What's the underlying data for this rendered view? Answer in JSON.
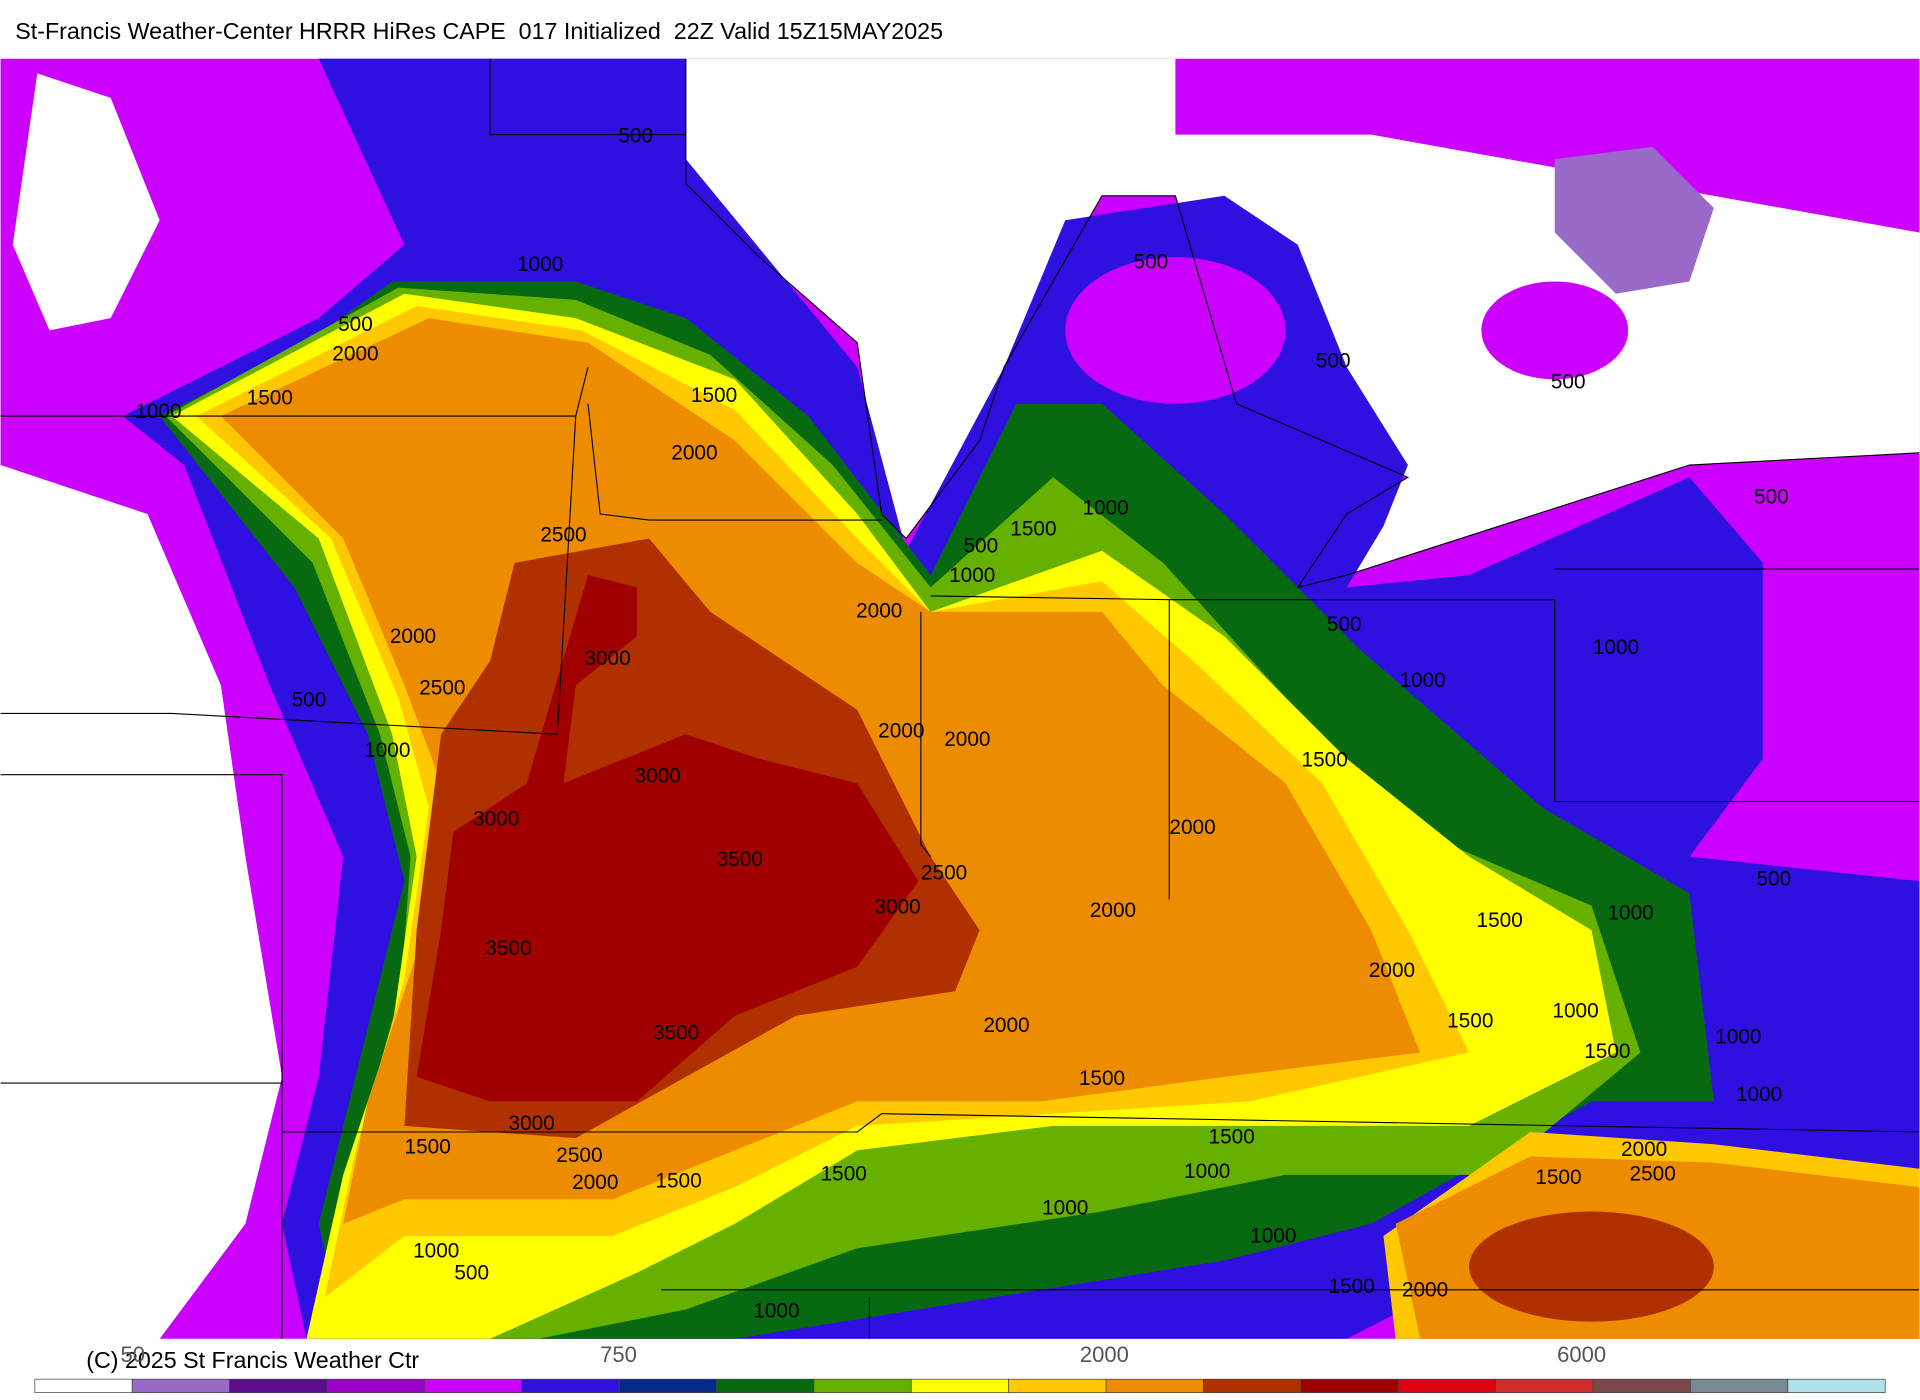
{
  "title": "St-Francis Weather-Center HRRR HiRes CAPE  017 Initialized  22Z Valid 15Z15MAY2025",
  "contour_labels": [
    500,
    1000,
    500,
    2000,
    1500,
    1000,
    1500,
    2000,
    2500,
    500,
    500,
    500,
    1000,
    1500,
    500,
    1000,
    2000,
    500,
    500,
    2000,
    3000,
    2500,
    500,
    1000,
    1000,
    1000,
    2000,
    2000,
    3000,
    1500,
    3000,
    2000,
    3500,
    2500,
    3000,
    2000,
    1500,
    1000,
    500,
    3500,
    2000,
    1500,
    1000,
    2000,
    3500,
    1000,
    1500,
    1500,
    1000,
    3000,
    1500,
    2500,
    1500,
    2000,
    1500,
    1500,
    1000,
    2000,
    2500,
    1500,
    1000,
    1000,
    500,
    1000,
    1500,
    2000,
    1000
  ],
  "colorbar": {
    "colors": [
      "#ffffff",
      "#9a6ac8",
      "#5c0c8c",
      "#9a00c8",
      "#cc00ff",
      "#2e10e0",
      "#062a8a",
      "#086a10",
      "#66b000",
      "#ffff00",
      "#ffc800",
      "#ee8c00",
      "#b03000",
      "#a00000",
      "#e00010",
      "#d02c2c",
      "#7a4848",
      "#7a8a92",
      "#b0e0ea"
    ],
    "labels": [
      50,
      750,
      2000,
      6000
    ]
  },
  "copyright": "(C) 2025 St Francis Weather Ctr"
}
